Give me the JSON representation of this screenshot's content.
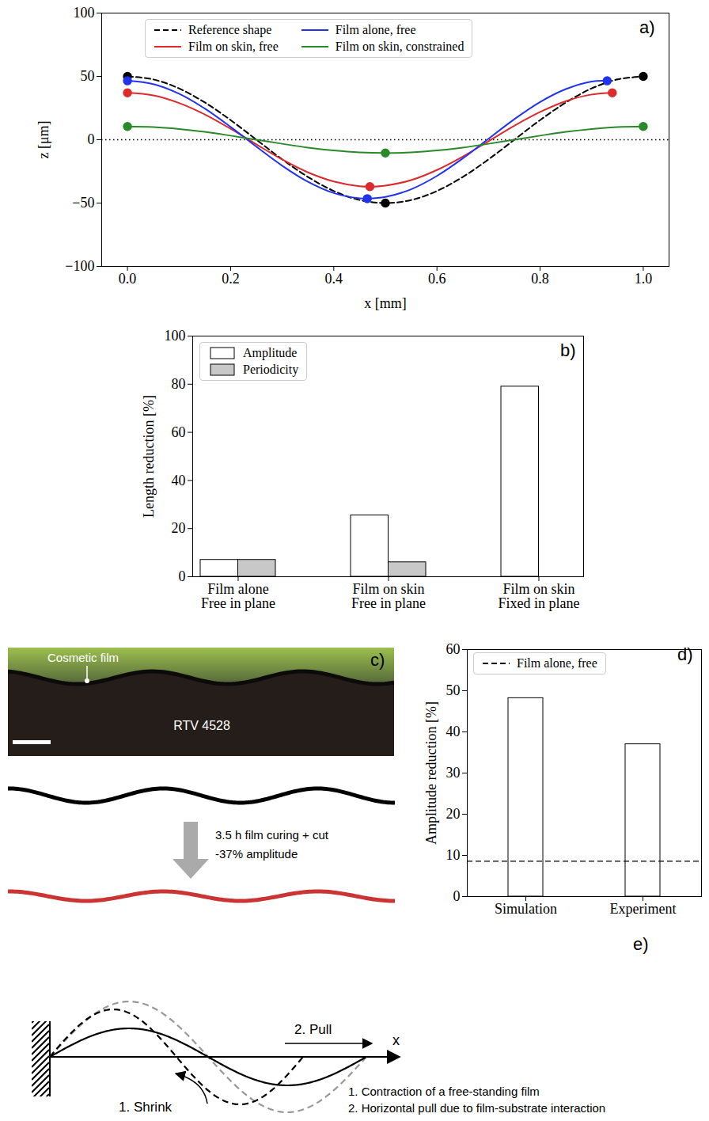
{
  "chart_data": [
    {
      "panel": "a)",
      "type": "line",
      "x_label": "x [mm]",
      "y_label": "z [μm]",
      "xlim": [
        -0.05,
        1.05
      ],
      "xticks": [
        {
          "value": 0,
          "label": "0.0"
        },
        0.2,
        0.4,
        0.6,
        0.8,
        {
          "value": 1,
          "label": "1.0"
        }
      ],
      "ylim": [
        -100,
        100
      ],
      "yticks": [
        {
          "value": -100,
          "label": "−100"
        },
        {
          "value": -50,
          "label": "−50"
        },
        0,
        50,
        100
      ],
      "legend": "upper center",
      "hlines": [
        {
          "y": 0,
          "line_style": "dotted"
        }
      ],
      "series": [
        {
          "name": "Reference shape",
          "color": "#000000",
          "line_style": "dashed",
          "marker": "circle",
          "x": [
            0,
            0.05,
            0.1,
            0.15,
            0.2,
            0.25,
            0.3,
            0.35,
            0.4,
            0.45,
            0.5,
            0.55,
            0.6,
            0.65,
            0.7,
            0.75,
            0.8,
            0.85,
            0.9,
            0.95,
            1
          ],
          "values": [
            50,
            47.6,
            40.5,
            29.4,
            15.5,
            0,
            -15.5,
            -29.4,
            -40.5,
            -47.6,
            -50,
            -47.6,
            -40.5,
            -29.4,
            -15.5,
            0,
            15.5,
            29.4,
            40.5,
            47.6,
            50
          ],
          "markers": {
            "x": [
              0,
              0.5,
              1
            ],
            "values": [
              50,
              -50,
              50
            ]
          }
        },
        {
          "name": "Film on skin, free",
          "color": "#dd2a2a",
          "line_style": "solid",
          "marker": "circle",
          "x": [
            0,
            0.05,
            0.1,
            0.15,
            0.2,
            0.25,
            0.3,
            0.35,
            0.4,
            0.45,
            0.47,
            0.5,
            0.55,
            0.6,
            0.65,
            0.7,
            0.75,
            0.8,
            0.85,
            0.9,
            0.94
          ],
          "values": [
            37,
            35.0,
            29.0,
            19.9,
            8.6,
            -3.7,
            -15.6,
            -25.8,
            -33.0,
            -36.7,
            -37,
            -36.2,
            -31.9,
            -23.9,
            -13.3,
            -1.2,
            11.0,
            21.9,
            30.5,
            35.7,
            37
          ],
          "markers": {
            "x": [
              0,
              0.47,
              0.94
            ],
            "values": [
              37,
              -37,
              37
            ]
          }
        },
        {
          "name": "Film alone, free",
          "color": "#2233ee",
          "line_style": "solid",
          "marker": "circle",
          "x": [
            0,
            0.05,
            0.1,
            0.15,
            0.2,
            0.25,
            0.3,
            0.35,
            0.4,
            0.45,
            0.465,
            0.5,
            0.55,
            0.6,
            0.65,
            0.7,
            0.75,
            0.8,
            0.85,
            0.9,
            0.93
          ],
          "values": [
            46.5,
            43.9,
            36.3,
            24.6,
            10.1,
            -5.5,
            -20.5,
            -33.2,
            -42.1,
            -46.3,
            -46.5,
            -45.2,
            -39.1,
            -28.6,
            -14.8,
            0.8,
            16.2,
            29.8,
            40.0,
            46.0,
            46.5
          ],
          "markers": {
            "x": [
              0,
              0.465,
              0.93
            ],
            "values": [
              46.5,
              -46.5,
              46.5
            ]
          }
        },
        {
          "name": "Film on skin, constrained",
          "color": "#2a8a2a",
          "line_style": "solid",
          "marker": "circle",
          "x": [
            0,
            0.05,
            0.1,
            0.15,
            0.2,
            0.25,
            0.3,
            0.35,
            0.4,
            0.45,
            0.5,
            0.55,
            0.6,
            0.65,
            0.7,
            0.75,
            0.8,
            0.85,
            0.9,
            0.95,
            1
          ],
          "values": [
            10.5,
            10.0,
            8.5,
            6.2,
            3.2,
            0,
            -3.2,
            -6.2,
            -8.5,
            -10.0,
            -10.5,
            -10.0,
            -8.5,
            -6.2,
            -3.2,
            0,
            3.2,
            6.2,
            8.5,
            10.0,
            10.5
          ],
          "markers": {
            "x": [
              0,
              0.5,
              1
            ],
            "values": [
              10.5,
              -10.5,
              10.5
            ]
          }
        }
      ]
    },
    {
      "panel": "b)",
      "type": "bar",
      "y_label": "Length reduction [%]",
      "categories": [
        "Film alone\nFree in plane",
        "Film on skin\nFree in plane",
        "Film on skin\nFixed in plane"
      ],
      "ylim": [
        0,
        100
      ],
      "yticks": [
        0,
        20,
        40,
        60,
        80,
        100
      ],
      "legend": "upper left",
      "series": [
        {
          "name": "Amplitude",
          "color": "#ffffff",
          "values": [
            7,
            25.5,
            79
          ]
        },
        {
          "name": "Periodicity",
          "color": "#c8c8c8",
          "values": [
            7,
            6,
            0
          ]
        }
      ]
    },
    {
      "panel": "d)",
      "type": "bar",
      "y_label": "Amplitude reduction [%]",
      "categories": [
        "Simulation",
        "Experiment"
      ],
      "values": [
        48.2,
        37
      ],
      "color": "#ffffff",
      "ylim": [
        0,
        60
      ],
      "yticks": [
        0,
        10,
        20,
        30,
        40,
        50,
        60
      ],
      "legend": "upper left",
      "hlines": [
        {
          "y": 8.6,
          "name": "Film alone, free",
          "line_style": "dashed"
        }
      ]
    }
  ],
  "photo_panel": {
    "panel": "c)",
    "labels": [
      "Cosmetic film",
      "RTV 4528"
    ],
    "process": "3.5 h film curing + cut",
    "result": "-37% amplitude"
  },
  "diagram": {
    "panel": "e)",
    "axis_label": "x",
    "steps": [
      "1. Shrink",
      "2. Pull"
    ],
    "notes": [
      "1. Contraction of a free-standing film",
      "2. Horizontal pull due to film-substrate interaction"
    ]
  }
}
